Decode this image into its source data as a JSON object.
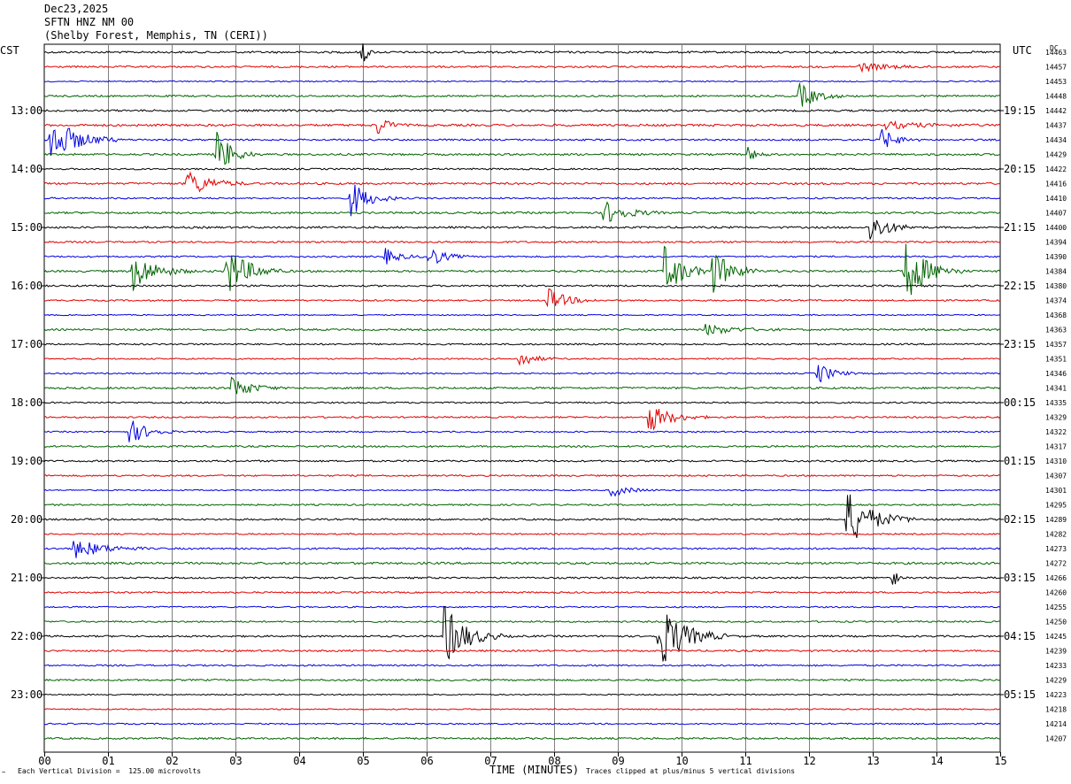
{
  "header": {
    "date": "Dec23,2025",
    "station": "SFTN HNZ NM 00",
    "location": "(Shelby Forest, Memphis, TN (CERI))"
  },
  "corner_left": "CST",
  "corner_right": "UTC",
  "dc_label": "DC",
  "footer": {
    "scale_note": "Each Vertical Division =  125.00 microvolts",
    "axis_title": "TIME (MINUTES)",
    "clip_note": "Traces clipped at plus/minus 5 vertical divisions",
    "logo_mark": "~"
  },
  "colors": {
    "cycle": [
      "#000000",
      "#e00000",
      "#0000e0",
      "#006400"
    ],
    "grid": "#808080"
  },
  "chart_data": {
    "type": "line",
    "title": "SFTN HNZ NM 00",
    "xlabel": "TIME (MINUTES)",
    "xlim": [
      0,
      15
    ],
    "x_ticks": [
      "00",
      "01",
      "02",
      "03",
      "04",
      "05",
      "06",
      "07",
      "08",
      "09",
      "10",
      "11",
      "12",
      "13",
      "14",
      "15"
    ],
    "rows": 48,
    "minutes_per_row": 15,
    "left_hour_labels": [
      "13:00",
      "14:00",
      "15:00",
      "16:00",
      "17:00",
      "18:00",
      "19:00",
      "20:00",
      "21:00",
      "22:00",
      "23:00"
    ],
    "right_hour_labels": [
      "19:15",
      "20:15",
      "21:15",
      "22:15",
      "23:15",
      "00:15",
      "01:15",
      "02:15",
      "03:15",
      "04:15",
      "05:15"
    ],
    "hour_label_first_row": 4,
    "dc_offsets": [
      "14463",
      "14457",
      "14453",
      "14448",
      "14442",
      "14437",
      "14434",
      "14429",
      "14422",
      "14416",
      "14410",
      "14407",
      "14400",
      "14394",
      "14390",
      "14384",
      "14380",
      "14374",
      "14368",
      "14363",
      "14357",
      "14351",
      "14346",
      "14341",
      "14335",
      "14329",
      "14322",
      "14317",
      "14310",
      "14307",
      "14301",
      "14295",
      "14289",
      "14282",
      "14273",
      "14272",
      "14266",
      "14260",
      "14255",
      "14250",
      "14245",
      "14239",
      "14233",
      "14229",
      "14223",
      "14218",
      "14214",
      "14207"
    ],
    "noise_level": [
      1.0,
      0.9,
      0.6,
      0.9,
      1.0,
      1.1,
      0.9,
      1.0,
      0.8,
      1.0,
      0.8,
      1.0,
      1.0,
      0.9,
      0.8,
      1.0,
      0.9,
      0.8,
      0.6,
      0.9,
      0.8,
      0.7,
      0.7,
      1.0,
      0.8,
      0.8,
      0.7,
      0.9,
      0.9,
      0.8,
      0.6,
      0.8,
      0.9,
      0.7,
      0.9,
      1.1,
      0.9,
      0.8,
      0.7,
      0.8,
      0.9,
      0.9,
      0.8,
      0.9,
      0.6,
      0.6,
      0.7,
      0.9
    ],
    "events": [
      {
        "row": 0,
        "minute": 5.0,
        "amp": 22,
        "dur": 0.05
      },
      {
        "row": 1,
        "minute": 12.8,
        "amp": 5,
        "dur": 0.4
      },
      {
        "row": 3,
        "minute": 11.85,
        "amp": 14,
        "dur": 0.25
      },
      {
        "row": 5,
        "minute": 5.25,
        "amp": 10,
        "dur": 0.15
      },
      {
        "row": 5,
        "minute": 13.2,
        "amp": 4,
        "dur": 0.5
      },
      {
        "row": 6,
        "minute": 0.1,
        "amp": 28,
        "dur": 0.35
      },
      {
        "row": 6,
        "minute": 13.15,
        "amp": 12,
        "dur": 0.2
      },
      {
        "row": 7,
        "minute": 2.7,
        "amp": 30,
        "dur": 0.2
      },
      {
        "row": 7,
        "minute": 11.05,
        "amp": 8,
        "dur": 0.12
      },
      {
        "row": 9,
        "minute": 2.25,
        "amp": 16,
        "dur": 0.3
      },
      {
        "row": 10,
        "minute": 4.8,
        "amp": 22,
        "dur": 0.25
      },
      {
        "row": 11,
        "minute": 8.8,
        "amp": 13,
        "dur": 0.3
      },
      {
        "row": 12,
        "minute": 12.95,
        "amp": 18,
        "dur": 0.25
      },
      {
        "row": 14,
        "minute": 5.35,
        "amp": 9,
        "dur": 0.2
      },
      {
        "row": 14,
        "minute": 6.05,
        "amp": 12,
        "dur": 0.2
      },
      {
        "row": 15,
        "minute": 1.4,
        "amp": 22,
        "dur": 0.3
      },
      {
        "row": 15,
        "minute": 2.85,
        "amp": 30,
        "dur": 0.3
      },
      {
        "row": 15,
        "minute": 9.75,
        "amp": 28,
        "dur": 0.25
      },
      {
        "row": 15,
        "minute": 10.5,
        "amp": 24,
        "dur": 0.25
      },
      {
        "row": 15,
        "minute": 13.5,
        "amp": 38,
        "dur": 0.3
      },
      {
        "row": 17,
        "minute": 7.9,
        "amp": 14,
        "dur": 0.25
      },
      {
        "row": 19,
        "minute": 10.4,
        "amp": 6,
        "dur": 0.4
      },
      {
        "row": 21,
        "minute": 7.45,
        "amp": 10,
        "dur": 0.2
      },
      {
        "row": 22,
        "minute": 12.15,
        "amp": 12,
        "dur": 0.2
      },
      {
        "row": 23,
        "minute": 2.95,
        "amp": 14,
        "dur": 0.25
      },
      {
        "row": 25,
        "minute": 9.5,
        "amp": 16,
        "dur": 0.3
      },
      {
        "row": 26,
        "minute": 1.35,
        "amp": 14,
        "dur": 0.25
      },
      {
        "row": 30,
        "minute": 8.9,
        "amp": 7,
        "dur": 0.25
      },
      {
        "row": 32,
        "minute": 12.6,
        "amp": 32,
        "dur": 0.35
      },
      {
        "row": 34,
        "minute": 0.45,
        "amp": 12,
        "dur": 0.4
      },
      {
        "row": 36,
        "minute": 13.3,
        "amp": 20,
        "dur": 0.05
      },
      {
        "row": 40,
        "minute": 6.3,
        "amp": 34,
        "dur": 0.3
      },
      {
        "row": 40,
        "minute": 9.65,
        "amp": 38,
        "dur": 0.35
      }
    ]
  }
}
